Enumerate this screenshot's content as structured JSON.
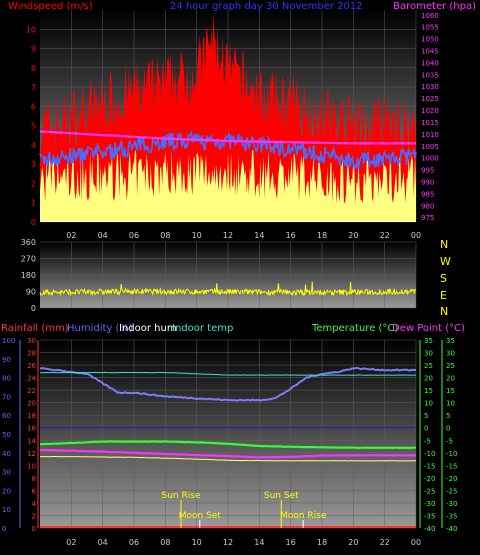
{
  "colors": {
    "wind": "#ff0000",
    "gust_avg": "#4a6bff",
    "gust_min": "#ffff80",
    "barometer": "#ff33ff",
    "title": "#3333ff",
    "direction": "#ffff00",
    "humidity": "#7b7bff",
    "indoor_temp": "#40e0d0",
    "temperature": "#33ff33",
    "dewpoint": "#ff33ff",
    "rain_axis": "#ff3333",
    "humidity_axis": "#6666ff",
    "grid": "#606060",
    "tick": "#cccccc"
  },
  "header": {
    "windspeed_label": "Windspeed (m/s)",
    "title": "24 hour graph day  30 November 2012",
    "barometer_label": "Barometer (hpa)"
  },
  "compass": {
    "letters": [
      "N",
      "W",
      "S",
      "E",
      "N"
    ]
  },
  "bottom_labels": {
    "rainfall": "Rainfall (mm)",
    "humidity": "Humidity (%)",
    "indoor_hum": "Indoor hum",
    "indoor_temp": "Indoor temp",
    "temperature": "Temperature (°C)",
    "dewpoint": "Dew Point (°C)"
  },
  "events": {
    "sun_rise": "Sun Rise",
    "sun_set": "Sun Set",
    "moon_set": "Moon Set",
    "moon_rise": "Moon Rise"
  },
  "chart_data": [
    {
      "type": "area",
      "panel": "wind",
      "x_ticks": [
        "02",
        "04",
        "06",
        "08",
        "10",
        "12",
        "14",
        "16",
        "18",
        "20",
        "22",
        "00"
      ],
      "y_left_ticks": [
        "0",
        "1",
        "2",
        "3",
        "4",
        "5",
        "6",
        "7",
        "8",
        "9",
        "10"
      ],
      "y_right_ticks": [
        "975",
        "980",
        "985",
        "990",
        "995",
        "1000",
        "1005",
        "1010",
        "1015",
        "1020",
        "1025",
        "1030",
        "1035",
        "1040",
        "1045",
        "1050",
        "1055",
        "1060"
      ],
      "ylim_left": [
        0,
        11
      ],
      "ylim_right": [
        973,
        1062
      ],
      "series": [
        {
          "name": "Windspeed (m/s)",
          "kind": "gust",
          "color": "wind",
          "hours": [
            0,
            2,
            4,
            6,
            8,
            10,
            11,
            12,
            14,
            16,
            18,
            20,
            22,
            24
          ],
          "values": [
            4.8,
            5.5,
            6.2,
            6.8,
            7.2,
            7.8,
            9.5,
            8.0,
            6.6,
            6.2,
            5.6,
            5.0,
            5.1,
            5.0
          ]
        },
        {
          "kind": "average",
          "color": "gust_avg",
          "hours": [
            0,
            4,
            8,
            12,
            16,
            20,
            24
          ],
          "values": [
            3.2,
            3.6,
            4.2,
            4.2,
            3.8,
            3.2,
            3.4
          ]
        },
        {
          "kind": "minimum",
          "color": "gust_min",
          "hours": [
            0,
            4,
            8,
            12,
            16,
            20,
            24
          ],
          "values": [
            2.2,
            2.3,
            2.6,
            2.6,
            2.4,
            2.2,
            2.3
          ]
        },
        {
          "name": "Barometer (hpa)",
          "kind": "barometer",
          "color": "barometer",
          "hours": [
            0,
            4,
            8,
            12,
            16,
            20,
            24
          ],
          "values": [
            1011,
            1009.5,
            1008,
            1007,
            1006.5,
            1006,
            1006
          ]
        }
      ]
    },
    {
      "type": "scatter",
      "panel": "direction",
      "y_ticks": [
        "0",
        "90",
        "180",
        "270",
        "360"
      ],
      "ylim": [
        0,
        360
      ],
      "series": [
        {
          "kind": "direction",
          "color": "direction",
          "hours": [
            0,
            6,
            12,
            18,
            24
          ],
          "values": [
            85,
            90,
            88,
            84,
            90
          ]
        }
      ]
    },
    {
      "type": "line",
      "panel": "temperature",
      "x_ticks": [
        "02",
        "04",
        "06",
        "08",
        "10",
        "12",
        "14",
        "16",
        "18",
        "20",
        "22",
        "00"
      ],
      "rain_ticks": [
        "0",
        "2",
        "4",
        "6",
        "8",
        "10",
        "12",
        "14",
        "16",
        "18",
        "20",
        "22",
        "24",
        "26",
        "28",
        "30"
      ],
      "humidity_ticks": [
        "0",
        "10",
        "20",
        "30",
        "40",
        "50",
        "60",
        "70",
        "80",
        "90",
        "100"
      ],
      "temp_ticks": [
        "-40",
        "-35",
        "-30",
        "-25",
        "-20",
        "-15",
        "-10",
        "-5",
        "0",
        "5",
        "10",
        "15",
        "20",
        "25",
        "30",
        "35"
      ],
      "ylim_temp": [
        -40,
        35
      ],
      "ylim_humidity": [
        0,
        100
      ],
      "series": [
        {
          "name": "Humidity (%)",
          "axis": "humidity",
          "color": "humidity",
          "hours": [
            0,
            1,
            3,
            5,
            6,
            8,
            10,
            12,
            14,
            15,
            16,
            17,
            18,
            19,
            20,
            22,
            24
          ],
          "values": [
            85,
            84,
            82,
            72,
            72,
            70,
            69,
            68,
            68,
            69,
            74,
            80,
            82,
            83,
            85,
            84,
            84
          ]
        },
        {
          "name": "Indoor temp",
          "axis": "temp",
          "color": "indoor_temp",
          "hours": [
            0,
            8,
            12,
            16,
            20,
            24
          ],
          "values": [
            22,
            22,
            21,
            21,
            21,
            21
          ]
        },
        {
          "name": "Temperature (°C)",
          "axis": "temp",
          "color": "temperature",
          "hours": [
            0,
            2,
            4,
            6,
            8,
            10,
            12,
            14,
            16,
            18,
            20,
            22,
            24
          ],
          "values": [
            -6.6,
            -6.1,
            -5.5,
            -5.5,
            -5.5,
            -5.8,
            -6.4,
            -7.3,
            -7.6,
            -7.8,
            -8.0,
            -8.0,
            -8.0
          ]
        },
        {
          "name": "Dew Point (°C)",
          "axis": "temp",
          "color": "dewpoint",
          "hours": [
            0,
            4,
            8,
            12,
            14,
            16,
            18,
            20,
            22,
            24
          ],
          "values": [
            -8.9,
            -9.5,
            -10.5,
            -11.3,
            -11.8,
            -11.6,
            -11.1,
            -11.0,
            -11.0,
            -11.0
          ]
        },
        {
          "name": "Indoor hum",
          "axis": "temp",
          "color": "gust_min",
          "hours": [
            0,
            3,
            6,
            9,
            12,
            15,
            24
          ],
          "values": [
            -11.5,
            -11.6,
            -11.8,
            -12.3,
            -13.0,
            -13.2,
            -13.2
          ]
        }
      ],
      "event_hours": {
        "sun_rise": 9.0,
        "sun_set": 15.4,
        "moon_set": 10.2,
        "moon_rise": 16.8
      }
    }
  ]
}
